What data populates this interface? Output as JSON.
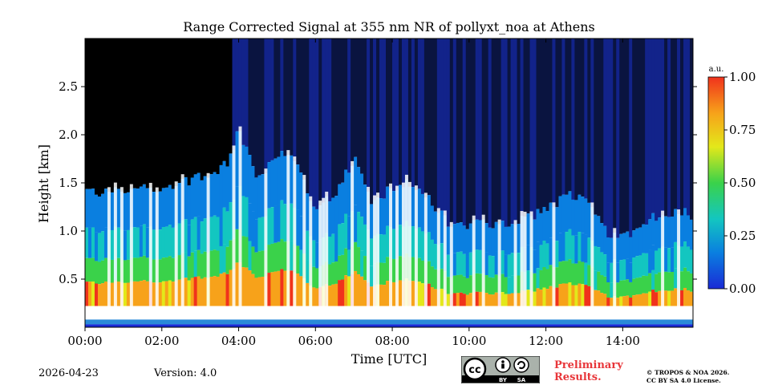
{
  "chart_data": {
    "type": "heatmap",
    "title": "Range Corrected Signal at 355 nm NR of pollyxt_noa at Athens",
    "xlabel": "Time [UTC]",
    "ylabel": "Height [km]",
    "xlim_hours": [
      0,
      15.83
    ],
    "ylim_km": [
      0,
      3.0
    ],
    "x_ticks": [
      {
        "value": 0,
        "label": "00:00"
      },
      {
        "value": 2,
        "label": "02:00"
      },
      {
        "value": 4,
        "label": "04:00"
      },
      {
        "value": 6,
        "label": "06:00"
      },
      {
        "value": 8,
        "label": "08:00"
      },
      {
        "value": 10,
        "label": "10:00"
      },
      {
        "value": 12,
        "label": "12:00"
      },
      {
        "value": 14,
        "label": "14:00"
      }
    ],
    "y_ticks": [
      {
        "value": 0.5,
        "label": "0.5"
      },
      {
        "value": 1.0,
        "label": "1.0"
      },
      {
        "value": 1.5,
        "label": "1.5"
      },
      {
        "value": 2.0,
        "label": "2.0"
      },
      {
        "value": 2.5,
        "label": "2.5"
      }
    ],
    "colorbar": {
      "unit": "a.u.",
      "range": [
        0,
        1
      ],
      "ticks": [
        {
          "value": 0.0,
          "label": "0.00"
        },
        {
          "value": 0.25,
          "label": "0.25"
        },
        {
          "value": 0.5,
          "label": "0.50"
        },
        {
          "value": 0.75,
          "label": "0.75"
        },
        {
          "value": 1.0,
          "label": "1.00"
        }
      ],
      "colors": [
        "#1a2ad6",
        "#0a7fe0",
        "#13c6c0",
        "#3ad24a",
        "#e3e81a",
        "#f7a21a",
        "#f0321c"
      ]
    },
    "boundary_layer_top_km": [
      [
        0.0,
        1.42
      ],
      [
        0.5,
        1.4
      ],
      [
        1.0,
        1.42
      ],
      [
        1.5,
        1.45
      ],
      [
        2.0,
        1.43
      ],
      [
        2.5,
        1.5
      ],
      [
        3.0,
        1.55
      ],
      [
        3.5,
        1.62
      ],
      [
        3.8,
        1.75
      ],
      [
        4.0,
        2.05
      ],
      [
        4.5,
        1.55
      ],
      [
        5.0,
        1.8
      ],
      [
        5.5,
        1.7
      ],
      [
        6.0,
        1.25
      ],
      [
        6.5,
        1.35
      ],
      [
        7.0,
        1.75
      ],
      [
        7.5,
        1.3
      ],
      [
        8.0,
        1.45
      ],
      [
        8.5,
        1.5
      ],
      [
        9.0,
        1.3
      ],
      [
        9.5,
        1.05
      ],
      [
        10.0,
        1.05
      ],
      [
        10.5,
        1.08
      ],
      [
        11.0,
        1.1
      ],
      [
        11.5,
        1.15
      ],
      [
        12.0,
        1.2
      ],
      [
        12.5,
        1.35
      ],
      [
        13.0,
        1.4
      ],
      [
        13.5,
        1.0
      ],
      [
        14.0,
        0.95
      ],
      [
        14.5,
        1.05
      ],
      [
        15.0,
        1.2
      ],
      [
        15.5,
        1.2
      ],
      [
        15.83,
        1.15
      ]
    ]
  },
  "footer": {
    "date": "2026-04-23",
    "version": "Version: 4.0",
    "preliminary_line1": "Preliminary",
    "preliminary_line2": "Results.",
    "copyright_line1": "© TROPOS & NOA 2026.",
    "copyright_line2": "CC BY SA 4.0 License.",
    "license_badge": "cc-by-sa-icon",
    "badge_by": "BY",
    "badge_sa": "SA"
  }
}
